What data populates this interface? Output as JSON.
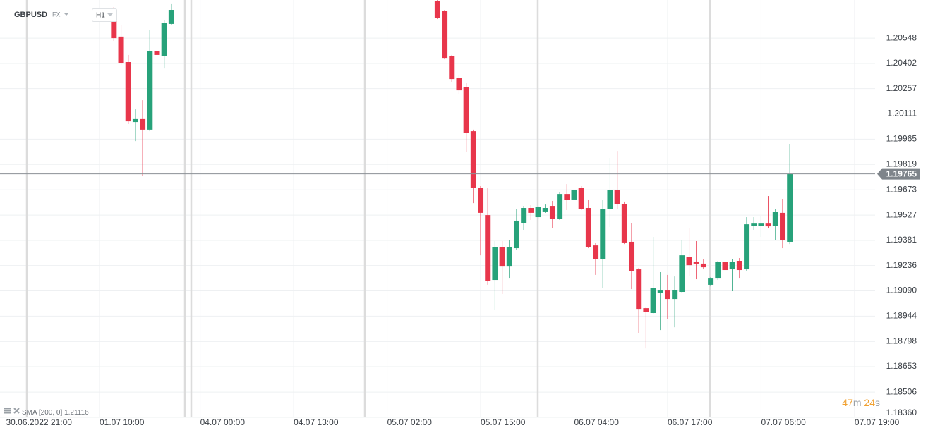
{
  "chart_data": {
    "type": "candlestick",
    "symbol": "GBPUSD",
    "market": "FX",
    "interval": "H1",
    "up_color": "#27a27a",
    "down_color": "#e8364b",
    "x": [
      "01.07 12:00",
      "01.07 13:00",
      "01.07 14:00",
      "01.07 15:00",
      "01.07 16:00",
      "01.07 17:00",
      "01.07 18:00",
      "01.07 19:00",
      "01.07 20:00",
      "05.07 09:00",
      "05.07 10:00",
      "05.07 11:00",
      "05.07 12:00",
      "05.07 13:00",
      "05.07 14:00",
      "05.07 15:00",
      "05.07 16:00",
      "05.07 17:00",
      "05.07 18:00",
      "05.07 19:00",
      "05.07 20:00",
      "05.07 21:00",
      "05.07 22:00",
      "05.07 23:00",
      "06.07 00:00",
      "06.07 01:00",
      "06.07 02:00",
      "06.07 03:00",
      "06.07 04:00",
      "06.07 05:00",
      "06.07 06:00",
      "06.07 07:00",
      "06.07 08:00",
      "06.07 09:00",
      "06.07 10:00",
      "06.07 11:00",
      "06.07 12:00",
      "06.07 13:00",
      "06.07 14:00",
      "06.07 15:00",
      "06.07 16:00",
      "06.07 17:00",
      "06.07 18:00",
      "06.07 19:00",
      "06.07 20:00",
      "06.07 21:00",
      "06.07 22:00",
      "06.07 23:00",
      "07.07 00:00",
      "07.07 01:00",
      "07.07 02:00",
      "07.07 03:00",
      "07.07 04:00",
      "07.07 05:00",
      "07.07 06:00",
      "07.07 07:00",
      "07.07 08:00",
      "07.07 09:00",
      "07.07 10:00"
    ],
    "open": [
      1.20687,
      1.20557,
      1.2041,
      1.20064,
      1.20081,
      1.2002,
      1.20475,
      1.20443,
      1.2063,
      1.2076,
      1.20703,
      1.20443,
      1.20317,
      1.20264,
      1.20011,
      1.19686,
      1.19527,
      1.19153,
      1.19344,
      1.1923,
      1.19336,
      1.19482,
      1.19568,
      1.19515,
      1.19548,
      1.1958,
      1.19507,
      1.19649,
      1.19617,
      1.19682,
      1.19568,
      1.19352,
      1.19275,
      1.19564,
      1.1967,
      1.19592,
      1.19373,
      1.19214,
      1.1899,
      1.18962,
      1.1908,
      1.19092,
      1.19043,
      1.19084,
      1.19287,
      1.19259,
      1.19247,
      1.19125,
      1.19161,
      1.19255,
      1.19214,
      1.19263,
      1.19214,
      1.19466,
      1.19466,
      1.19478,
      1.19466,
      1.1954,
      1.19373
    ],
    "high": [
      1.20727,
      1.20622,
      1.20451,
      1.20137,
      1.2019,
      1.20597,
      1.20585,
      1.20654,
      1.20748,
      1.2079,
      1.20711,
      1.20451,
      1.20337,
      1.20288,
      1.2002,
      1.19694,
      1.19686,
      1.19377,
      1.19377,
      1.19385,
      1.19564,
      1.1958,
      1.19584,
      1.1958,
      1.19588,
      1.19609,
      1.19661,
      1.19706,
      1.19702,
      1.19694,
      1.19617,
      1.19365,
      1.19613,
      1.19857,
      1.19897,
      1.19605,
      1.19482,
      1.19222,
      1.18998,
      1.19401,
      1.19198,
      1.19182,
      1.19173,
      1.19385,
      1.1945,
      1.19377,
      1.19271,
      1.19169,
      1.19263,
      1.19267,
      1.19275,
      1.19279,
      1.19515,
      1.19515,
      1.19523,
      1.19637,
      1.19564,
      1.19621,
      1.19938
    ],
    "low": [
      1.20532,
      1.20394,
      1.20052,
      1.19954,
      1.19755,
      1.20011,
      1.20439,
      1.20373,
      1.20626,
      1.20658,
      1.20426,
      1.20292,
      1.20223,
      1.19893,
      1.19596,
      1.19295,
      1.19125,
      1.18978,
      1.19072,
      1.19161,
      1.19328,
      1.19442,
      1.19499,
      1.19507,
      1.1954,
      1.19454,
      1.19499,
      1.19556,
      1.19609,
      1.19556,
      1.19336,
      1.19182,
      1.19108,
      1.19458,
      1.1956,
      1.1936,
      1.191,
      1.18848,
      1.18758,
      1.18954,
      1.18864,
      1.18929,
      1.1888,
      1.19076,
      1.19173,
      1.19157,
      1.19214,
      1.19116,
      1.19153,
      1.19202,
      1.19088,
      1.19161,
      1.19206,
      1.19442,
      1.19401,
      1.1945,
      1.19385,
      1.19336,
      1.1936
    ],
    "close": [
      1.20548,
      1.20402,
      1.20068,
      1.20081,
      1.2002,
      1.20475,
      1.20451,
      1.20634,
      1.20711,
      1.20666,
      1.20434,
      1.20312,
      1.20247,
      1.20003,
      1.19686,
      1.1954,
      1.19149,
      1.19344,
      1.1923,
      1.19344,
      1.19495,
      1.19568,
      1.1954,
      1.19576,
      1.19568,
      1.19507,
      1.19649,
      1.19613,
      1.1967,
      1.19564,
      1.19344,
      1.19275,
      1.1956,
      1.1967,
      1.19592,
      1.19369,
      1.19206,
      1.18986,
      1.1897,
      1.19108,
      1.19092,
      1.19043,
      1.19096,
      1.19295,
      1.19238,
      1.19247,
      1.19226,
      1.19161,
      1.19255,
      1.1921,
      1.19255,
      1.1921,
      1.19474,
      1.19478,
      1.19478,
      1.19462,
      1.19544,
      1.19381,
      1.19765
    ],
    "ylim": [
      1.1836,
      1.20768
    ],
    "yticks": [
      1.20548,
      1.20402,
      1.20257,
      1.20111,
      1.19965,
      1.19819,
      1.19673,
      1.19527,
      1.19381,
      1.19236,
      {
        "value": 1.1909,
        "label": "1.19090"
      },
      1.18944,
      1.18798,
      1.18653,
      1.18506,
      {
        "value": 1.1836,
        "label": "1.18360"
      }
    ],
    "xticks": [
      "30.06.2022 21:00",
      "01.07 10:00",
      "04.07 00:00",
      "04.07 13:00",
      "05.07 02:00",
      "05.07 15:00",
      "06.07 04:00",
      "06.07 17:00",
      "07.07 06:00",
      "07.07 19:00"
    ],
    "last_price": 1.19765,
    "indicator": {
      "name": "SMA",
      "params": "[200, 0]",
      "value": 1.21116
    },
    "timer": {
      "minutes": 47,
      "minutes_unit": "m",
      "seconds": 24,
      "seconds_unit": "s"
    }
  }
}
